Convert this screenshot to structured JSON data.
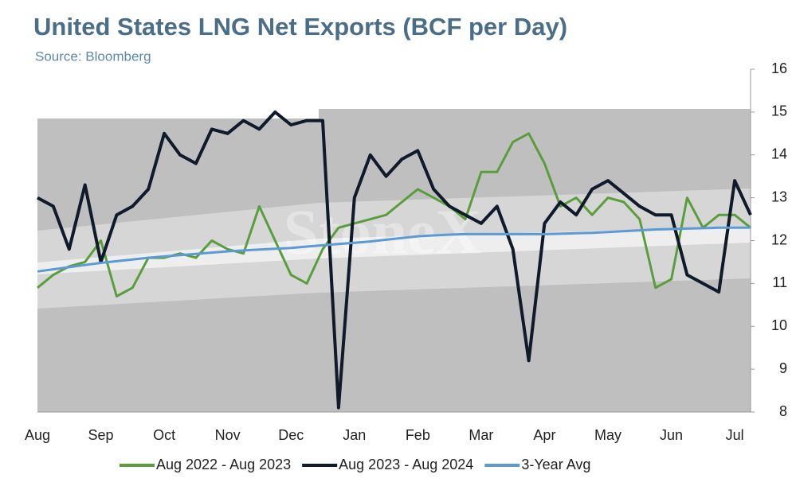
{
  "chart_data": {
    "type": "line",
    "title": "United States LNG Net Exports (BCF per Day)",
    "subtitle": "Source: Bloomberg",
    "watermark": "StoneX",
    "categories": [
      "Aug",
      null,
      null,
      null,
      "Sep",
      null,
      null,
      null,
      "Oct",
      null,
      null,
      null,
      "Nov",
      null,
      null,
      null,
      "Dec",
      null,
      null,
      null,
      "Jan",
      null,
      null,
      null,
      "Feb",
      null,
      null,
      null,
      "Mar",
      null,
      null,
      null,
      "Apr",
      null,
      null,
      null,
      "May",
      null,
      null,
      null,
      "Jun",
      null,
      null,
      null,
      "Jul",
      null
    ],
    "series": [
      {
        "name": "Aug 2022 - Aug 2023",
        "color": "#5a9e3c",
        "values": [
          10.9,
          11.2,
          11.4,
          11.5,
          12.0,
          10.7,
          10.9,
          11.6,
          11.6,
          11.7,
          11.6,
          12.0,
          11.8,
          11.7,
          12.8,
          12.0,
          11.2,
          11.0,
          11.8,
          12.3,
          12.4,
          12.5,
          12.6,
          12.9,
          13.2,
          13.0,
          12.8,
          12.5,
          13.6,
          13.6,
          14.3,
          14.5,
          13.8,
          12.8,
          13.0,
          12.6,
          13.0,
          12.9,
          12.5,
          10.9,
          11.1,
          13.0,
          12.3,
          12.6,
          12.6,
          12.3
        ]
      },
      {
        "name": "Aug 2023 - Aug 2024",
        "color": "#0f1a2a",
        "values": [
          13.0,
          12.8,
          11.8,
          13.3,
          11.5,
          12.6,
          12.8,
          13.2,
          14.5,
          14.0,
          13.8,
          14.6,
          14.5,
          14.8,
          14.6,
          15.0,
          14.7,
          14.8,
          14.8,
          8.1,
          13.0,
          14.0,
          13.5,
          13.9,
          14.1,
          13.2,
          12.8,
          12.6,
          12.4,
          12.8,
          11.8,
          9.2,
          12.4,
          12.9,
          12.6,
          13.2,
          13.4,
          13.1,
          12.8,
          12.6,
          12.6,
          11.2,
          11.0,
          10.8,
          13.4,
          12.6
        ]
      },
      {
        "name": "3-Year Avg",
        "color": "#5b9bd5",
        "values": [
          11.28,
          11.33,
          11.38,
          11.43,
          11.48,
          11.52,
          11.56,
          11.6,
          11.63,
          11.66,
          11.69,
          11.72,
          11.75,
          11.77,
          11.79,
          11.81,
          11.83,
          11.86,
          11.89,
          11.92,
          11.95,
          11.98,
          12.02,
          12.06,
          12.1,
          12.12,
          12.14,
          12.15,
          12.15,
          12.15,
          12.15,
          12.15,
          12.15,
          12.16,
          12.17,
          12.18,
          12.2,
          12.22,
          12.24,
          12.26,
          12.27,
          12.28,
          12.29,
          12.3,
          12.3,
          12.3
        ]
      }
    ],
    "ylim": [
      8,
      16
    ],
    "yticks": [
      8,
      9,
      10,
      11,
      12,
      13,
      14,
      15,
      16
    ]
  }
}
